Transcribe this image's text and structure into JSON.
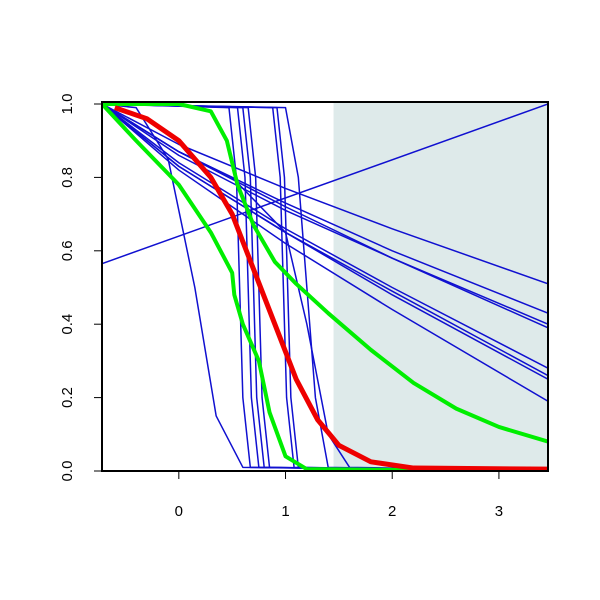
{
  "chart_data": {
    "type": "line",
    "xlim": [
      -0.72,
      3.46
    ],
    "ylim": [
      0,
      1
    ],
    "xticks": [
      0,
      1,
      2,
      3
    ],
    "yticks": [
      {
        "value": 0,
        "label": "0.0"
      },
      {
        "value": 0.2,
        "label": "0.2"
      },
      {
        "value": 0.4,
        "label": "0.4"
      },
      {
        "value": 0.6,
        "label": "0.6"
      },
      {
        "value": 0.8,
        "label": "0.8"
      },
      {
        "value": 1,
        "label": "1.0"
      }
    ],
    "shaded_region": {
      "xmin": 1.45,
      "xmax": 3.46,
      "color": "#deeaea"
    },
    "series": [
      {
        "color": "#1010d0",
        "width": 1.5,
        "x": [
          -0.72,
          3.46
        ],
        "values": [
          0.565,
          1.0
        ]
      },
      {
        "color": "#1010d0",
        "width": 1.5,
        "x": [
          -0.72,
          0,
          1,
          2,
          3.46
        ],
        "values": [
          1,
          0.89,
          0.77,
          0.66,
          0.51
        ]
      },
      {
        "color": "#1010d0",
        "width": 1.5,
        "x": [
          -0.72,
          0,
          1,
          2,
          3.46
        ],
        "values": [
          1,
          0.87,
          0.73,
          0.6,
          0.43
        ]
      },
      {
        "color": "#1010d0",
        "width": 1.5,
        "x": [
          -0.72,
          0,
          1,
          2,
          3.46
        ],
        "values": [
          1,
          0.87,
          0.72,
          0.58,
          0.4
        ]
      },
      {
        "color": "#1010d0",
        "width": 1.5,
        "x": [
          -0.72,
          0,
          1,
          2,
          3.46
        ],
        "values": [
          1,
          0.86,
          0.71,
          0.58,
          0.39
        ]
      },
      {
        "color": "#1010d0",
        "width": 1.5,
        "x": [
          -0.72,
          0,
          1,
          2,
          3.46
        ],
        "values": [
          1,
          0.84,
          0.66,
          0.5,
          0.28
        ]
      },
      {
        "color": "#1010d0",
        "width": 1.5,
        "x": [
          -0.72,
          0,
          1,
          2,
          3.46
        ],
        "values": [
          1,
          0.83,
          0.65,
          0.49,
          0.26
        ]
      },
      {
        "color": "#1010d0",
        "width": 1.5,
        "x": [
          -0.72,
          0,
          1,
          2,
          3.46
        ],
        "values": [
          1,
          0.83,
          0.65,
          0.48,
          0.25
        ]
      },
      {
        "color": "#1010d0",
        "width": 1.5,
        "x": [
          -0.72,
          0,
          1,
          2,
          3.46
        ],
        "values": [
          1,
          0.82,
          0.62,
          0.44,
          0.19
        ]
      },
      {
        "color": "#1010d0",
        "width": 1.5,
        "x": [
          -0.72,
          0,
          0.5,
          1.0,
          1.2,
          1.4,
          1.6,
          3.46
        ],
        "values": [
          1,
          0.87,
          0.8,
          0.65,
          0.4,
          0.1,
          0.01,
          0
        ]
      },
      {
        "color": "#1010d0",
        "width": 1.5,
        "x": [
          -0.72,
          -0.4,
          -0.1,
          0.15,
          0.35,
          0.6,
          3.46
        ],
        "values": [
          1,
          0.99,
          0.85,
          0.5,
          0.15,
          0.01,
          0
        ]
      },
      {
        "color": "#1010d0",
        "width": 1.5,
        "x": [
          -0.72,
          0.47,
          0.54,
          0.57,
          0.6,
          0.67,
          3.46
        ],
        "values": [
          1,
          0.99,
          0.8,
          0.5,
          0.2,
          0.01,
          0
        ]
      },
      {
        "color": "#1010d0",
        "width": 1.5,
        "x": [
          -0.72,
          0.55,
          0.62,
          0.65,
          0.68,
          0.75,
          3.46
        ],
        "values": [
          1,
          0.99,
          0.8,
          0.5,
          0.2,
          0.01,
          0
        ]
      },
      {
        "color": "#1010d0",
        "width": 1.5,
        "x": [
          -0.72,
          0.6,
          0.67,
          0.7,
          0.73,
          0.8,
          3.46
        ],
        "values": [
          1,
          0.99,
          0.8,
          0.5,
          0.2,
          0.01,
          0
        ]
      },
      {
        "color": "#1010d0",
        "width": 1.5,
        "x": [
          -0.72,
          0.65,
          0.72,
          0.75,
          0.78,
          0.85,
          3.46
        ],
        "values": [
          1,
          0.99,
          0.8,
          0.5,
          0.2,
          0.01,
          0
        ]
      },
      {
        "color": "#1010d0",
        "width": 1.5,
        "x": [
          -0.72,
          0.88,
          0.95,
          0.98,
          1.01,
          1.08,
          3.46
        ],
        "values": [
          1,
          0.99,
          0.8,
          0.5,
          0.2,
          0.01,
          0
        ]
      },
      {
        "color": "#1010d0",
        "width": 1.5,
        "x": [
          -0.72,
          0.92,
          0.99,
          1.02,
          1.05,
          1.12,
          3.46
        ],
        "values": [
          1,
          0.99,
          0.8,
          0.5,
          0.2,
          0.01,
          0
        ]
      },
      {
        "color": "#1010d0",
        "width": 1.5,
        "x": [
          -0.72,
          1.0,
          1.12,
          1.2,
          1.28,
          1.4,
          3.46
        ],
        "values": [
          1,
          0.99,
          0.8,
          0.5,
          0.2,
          0.01,
          0
        ]
      },
      {
        "color": "#00ee00",
        "width": 4,
        "x": [
          -0.72,
          0,
          0.3,
          0.45,
          0.55,
          0.7,
          0.9,
          1.1,
          1.4,
          1.8,
          2.2,
          2.6,
          3,
          3.46
        ],
        "values": [
          1,
          1,
          0.98,
          0.9,
          0.78,
          0.67,
          0.57,
          0.51,
          0.43,
          0.33,
          0.24,
          0.17,
          0.12,
          0.08
        ]
      },
      {
        "color": "#00ee00",
        "width": 4,
        "x": [
          -0.72,
          -0.4,
          0,
          0.3,
          0.5,
          0.52,
          0.6,
          0.75,
          0.85,
          1.0,
          1.2,
          3.46
        ],
        "values": [
          1,
          0.9,
          0.78,
          0.65,
          0.54,
          0.48,
          0.4,
          0.3,
          0.16,
          0.04,
          0.005,
          0
        ]
      },
      {
        "color": "#ee0000",
        "width": 5,
        "x": [
          -0.6,
          -0.3,
          0,
          0.3,
          0.5,
          0.7,
          0.9,
          1.1,
          1.3,
          1.5,
          1.8,
          2.2,
          3.46
        ],
        "values": [
          0.99,
          0.96,
          0.9,
          0.8,
          0.7,
          0.55,
          0.4,
          0.25,
          0.14,
          0.07,
          0.025,
          0.008,
          0.005
        ]
      }
    ]
  }
}
